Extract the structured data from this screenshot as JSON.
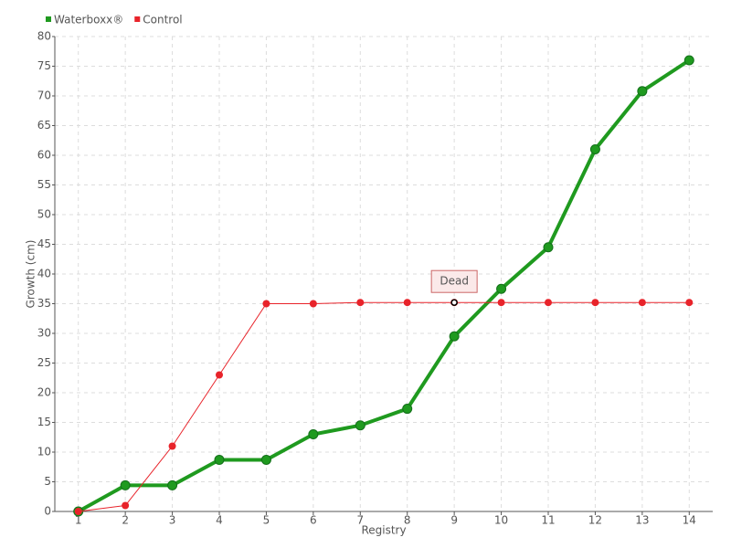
{
  "chart_data": {
    "type": "line",
    "xlabel": "Registry",
    "ylabel": "Growth (cm)",
    "categories": [
      "1",
      "2",
      "3",
      "4",
      "5",
      "6",
      "7",
      "8",
      "9",
      "10",
      "11",
      "12",
      "13",
      "14"
    ],
    "series": [
      {
        "name": "Waterboxx®",
        "color": "#1f9a1f",
        "values": [
          0,
          4.4,
          4.4,
          8.7,
          8.7,
          13,
          14.5,
          17.3,
          29.5,
          37.5,
          44.5,
          61,
          70.8,
          76
        ]
      },
      {
        "name": "Control",
        "color": "#e8232a",
        "values": [
          0,
          1,
          11,
          23,
          35,
          35,
          35.2,
          35.2,
          35.2,
          35.2,
          35.2,
          35.2,
          35.2,
          35.2
        ]
      }
    ],
    "annotation": {
      "text": "Dead",
      "category": "9"
    },
    "ylim": [
      0,
      80
    ],
    "yticks": [
      0,
      5,
      10,
      15,
      20,
      25,
      30,
      35,
      40,
      45,
      50,
      55,
      60,
      65,
      70,
      75,
      80
    ],
    "grid": true
  }
}
